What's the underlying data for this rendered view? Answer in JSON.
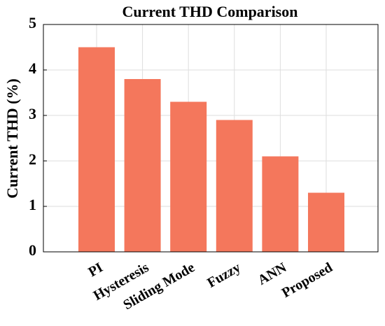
{
  "chart_data": {
    "type": "bar",
    "title": "Current THD Comparison",
    "y_label": "Current THD (%)",
    "categories": [
      "PI",
      "Hysteresis",
      "Sliding Mode",
      "Fuzzy",
      "ANN",
      "Proposed"
    ],
    "values": [
      4.5,
      3.8,
      3.3,
      2.9,
      2.1,
      1.3
    ],
    "color": "#f4775c",
    "ylim": [
      0,
      5
    ],
    "yticks": [
      0,
      1,
      2,
      3,
      4,
      5
    ],
    "grid": true
  }
}
